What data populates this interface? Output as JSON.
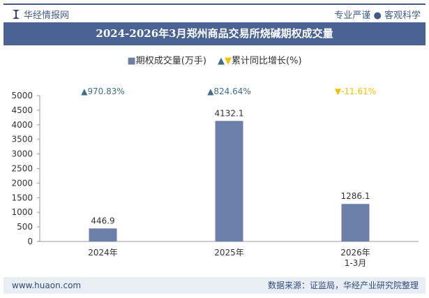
{
  "header": {
    "brand": "华经情报网",
    "slogan": "专业严谨 ● 客观科学"
  },
  "title": "2024-2026年3月郑州商品交易所烧碱期权成交量",
  "legend": {
    "bar": "期权成交量(万手)",
    "line": "累计同比增长(%)"
  },
  "footer": {
    "website": "www.huaon.com",
    "source": "数据来源：证监局，华经产业研究院整理"
  },
  "colors": {
    "bar": "#6b7fa8",
    "up": "#3d6e8f",
    "down": "#f5c000",
    "title_bg": "#4a6394"
  },
  "chart_data": {
    "type": "bar",
    "title": "2024-2026年3月郑州商品交易所烧碱期权成交量",
    "categories": [
      "2024年",
      "2025年",
      "2026年\n1-3月"
    ],
    "series": [
      {
        "name": "期权成交量(万手)",
        "values": [
          446.9,
          4132.1,
          1286.1
        ]
      },
      {
        "name": "累计同比增长(%)",
        "values": [
          970.83,
          824.64,
          -11.61
        ],
        "labels": [
          "▲970.83%",
          "▲824.64%",
          "▼-11.61%"
        ]
      }
    ],
    "ylim": [
      0,
      5000
    ],
    "yticks": [
      0,
      500,
      1000,
      1500,
      2000,
      2500,
      3000,
      3500,
      4000,
      4500,
      5000
    ],
    "grid": false
  }
}
